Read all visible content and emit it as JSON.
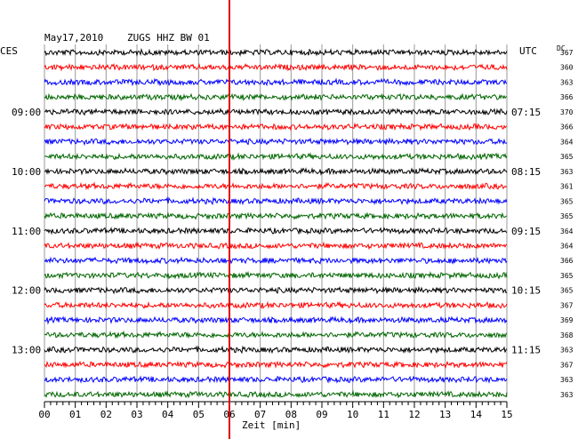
{
  "header": {
    "date": "May17,2010",
    "station": "ZUGS HHZ BW 01",
    "left_zone": "CES",
    "right_zone": "UTC",
    "dc_label": "DC"
  },
  "chart_data": {
    "type": "line",
    "title": "May17,2010   ZUGS HHZ BW 01",
    "xlabel": "Zeit [min]",
    "xlim": [
      0,
      15
    ],
    "x_ticks": [
      "00",
      "01",
      "02",
      "03",
      "04",
      "05",
      "06",
      "07",
      "08",
      "09",
      "10",
      "11",
      "12",
      "13",
      "14",
      "15"
    ],
    "trace_count": 24,
    "trace_colors": [
      "#000000",
      "#ff0000",
      "#0000ff",
      "#006600"
    ],
    "left_hour_labels": [
      {
        "trace": 4,
        "label": "09:00"
      },
      {
        "trace": 8,
        "label": "10:00"
      },
      {
        "trace": 12,
        "label": "11:00"
      },
      {
        "trace": 16,
        "label": "12:00"
      },
      {
        "trace": 20,
        "label": "13:00"
      }
    ],
    "right_hour_labels": [
      {
        "trace": 4,
        "label": "07:15"
      },
      {
        "trace": 8,
        "label": "08:15"
      },
      {
        "trace": 12,
        "label": "09:15"
      },
      {
        "trace": 16,
        "label": "10:15"
      },
      {
        "trace": 20,
        "label": "11:15"
      }
    ],
    "dc_values": [
      367,
      360,
      363,
      366,
      370,
      366,
      364,
      365,
      363,
      361,
      365,
      365,
      364,
      364,
      366,
      365,
      365,
      367,
      369,
      368,
      363,
      367,
      363,
      363
    ],
    "current_time_min": 6.0,
    "current_time_color": "#dd0000"
  }
}
